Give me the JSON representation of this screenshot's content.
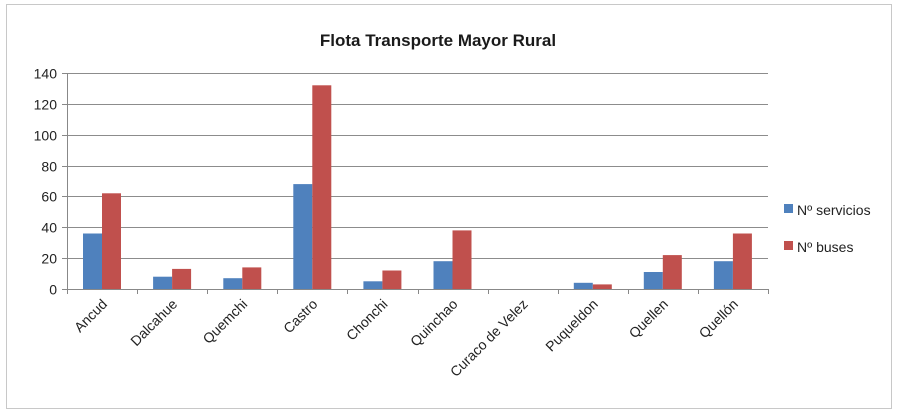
{
  "chart_data": {
    "type": "bar",
    "title": "Flota Transporte Mayor Rural",
    "xlabel": "",
    "ylabel": "",
    "ylim": [
      0,
      140
    ],
    "yticks": [
      0,
      20,
      40,
      60,
      80,
      100,
      120,
      140
    ],
    "grid": true,
    "legend_position": "right",
    "categories": [
      "Ancud",
      "Dalcahue",
      "Quemchi",
      "Castro",
      "Chonchi",
      "Quinchao",
      "Curaco de Velez",
      "Puqueldon",
      "Quellen",
      "Quellón"
    ],
    "series": [
      {
        "name": "Nº servicios",
        "color": "#4f81bd",
        "values": [
          36,
          8,
          7,
          68,
          5,
          18,
          0,
          4,
          11,
          18
        ]
      },
      {
        "name": "Nº buses",
        "color": "#c0504d",
        "values": [
          62,
          13,
          14,
          132,
          12,
          38,
          0,
          3,
          22,
          36
        ]
      }
    ]
  }
}
